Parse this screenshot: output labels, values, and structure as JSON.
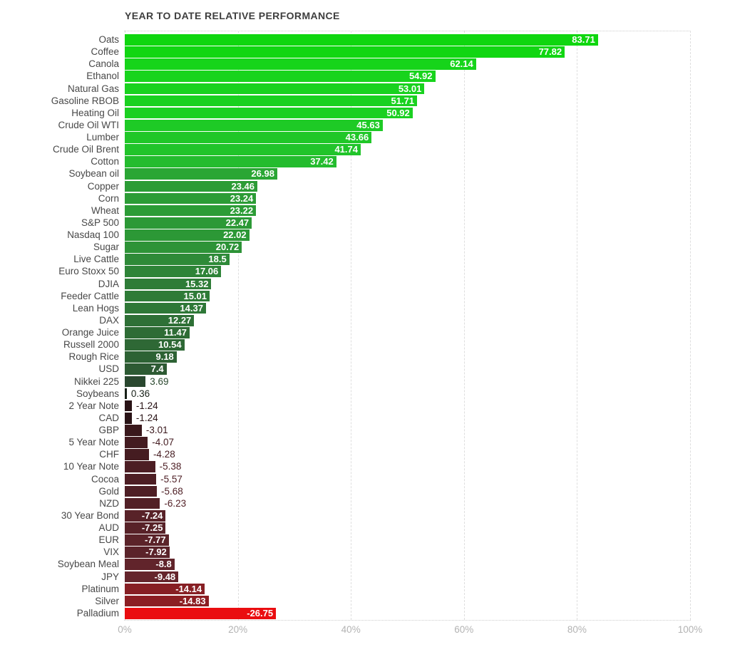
{
  "chart_data": {
    "type": "bar",
    "orientation": "horizontal",
    "title": "YEAR TO DATE RELATIVE PERFORMANCE",
    "x_axis": {
      "ticks": [
        "0%",
        "20%",
        "40%",
        "60%",
        "80%",
        "100%"
      ],
      "min": 0,
      "max": 100,
      "gridlines": "dashed vertical every 20%"
    },
    "value_label_rule": "values shown in white inside bar when bar is wide enough, otherwise outside in bar color; negative bars plot absolute magnitude from 0%",
    "series": [
      {
        "label": "Oats",
        "value": "83.71"
      },
      {
        "label": "Coffee",
        "value": "77.82"
      },
      {
        "label": "Canola",
        "value": "62.14"
      },
      {
        "label": "Ethanol",
        "value": "54.92"
      },
      {
        "label": "Natural Gas",
        "value": "53.01"
      },
      {
        "label": "Gasoline RBOB",
        "value": "51.71"
      },
      {
        "label": "Heating Oil",
        "value": "50.92"
      },
      {
        "label": "Crude Oil WTI",
        "value": "45.63"
      },
      {
        "label": "Lumber",
        "value": "43.66"
      },
      {
        "label": "Crude Oil Brent",
        "value": "41.74"
      },
      {
        "label": "Cotton",
        "value": "37.42"
      },
      {
        "label": "Soybean oil",
        "value": "26.98"
      },
      {
        "label": "Copper",
        "value": "23.46"
      },
      {
        "label": "Corn",
        "value": "23.24"
      },
      {
        "label": "Wheat",
        "value": "23.22"
      },
      {
        "label": "S&P 500",
        "value": "22.47"
      },
      {
        "label": "Nasdaq 100",
        "value": "22.02"
      },
      {
        "label": "Sugar",
        "value": "20.72"
      },
      {
        "label": "Live Cattle",
        "value": "18.5"
      },
      {
        "label": "Euro Stoxx 50",
        "value": "17.06"
      },
      {
        "label": "DJIA",
        "value": "15.32"
      },
      {
        "label": "Feeder Cattle",
        "value": "15.01"
      },
      {
        "label": "Lean Hogs",
        "value": "14.37"
      },
      {
        "label": "DAX",
        "value": "12.27"
      },
      {
        "label": "Orange Juice",
        "value": "11.47"
      },
      {
        "label": "Russell 2000",
        "value": "10.54"
      },
      {
        "label": "Rough Rice",
        "value": "9.18"
      },
      {
        "label": "USD",
        "value": "7.4"
      },
      {
        "label": "Nikkei 225",
        "value": "3.69"
      },
      {
        "label": "Soybeans",
        "value": "0.36"
      },
      {
        "label": "2 Year Note",
        "value": "-1.24"
      },
      {
        "label": "CAD",
        "value": "-1.24"
      },
      {
        "label": "GBP",
        "value": "-3.01"
      },
      {
        "label": "5 Year Note",
        "value": "-4.07"
      },
      {
        "label": "CHF",
        "value": "-4.28"
      },
      {
        "label": "10 Year Note",
        "value": "-5.38"
      },
      {
        "label": "Cocoa",
        "value": "-5.57"
      },
      {
        "label": "Gold",
        "value": "-5.68"
      },
      {
        "label": "NZD",
        "value": "-6.23"
      },
      {
        "label": "30 Year Bond",
        "value": "-7.24"
      },
      {
        "label": "AUD",
        "value": "-7.25"
      },
      {
        "label": "EUR",
        "value": "-7.77"
      },
      {
        "label": "VIX",
        "value": "-7.92"
      },
      {
        "label": "Soybean Meal",
        "value": "-8.8"
      },
      {
        "label": "JPY",
        "value": "-9.48"
      },
      {
        "label": "Platinum",
        "value": "-14.14"
      },
      {
        "label": "Silver",
        "value": "-14.83"
      },
      {
        "label": "Palladium",
        "value": "-26.75"
      }
    ],
    "color_scale": {
      "positive_max": 83.71,
      "negative_min": -26.75,
      "positive_stops": [
        [
          0.0,
          "#151b15"
        ],
        [
          0.03,
          "#263f2b"
        ],
        [
          0.05,
          "#2b4c31"
        ],
        [
          0.09,
          "#2d5b33"
        ],
        [
          0.13,
          "#2e6a35"
        ],
        [
          0.18,
          "#2e7b37"
        ],
        [
          0.22,
          "#2e8a38"
        ],
        [
          0.27,
          "#2c9a36"
        ],
        [
          0.33,
          "#2aa834"
        ],
        [
          0.45,
          "#24bd2e"
        ],
        [
          0.55,
          "#1ecb26"
        ],
        [
          0.66,
          "#18d41d"
        ],
        [
          1.0,
          "#0fd60f"
        ]
      ],
      "negative_stops": [
        [
          0.0,
          "#1c0e10"
        ],
        [
          0.046,
          "#291316"
        ],
        [
          0.113,
          "#3a181c"
        ],
        [
          0.16,
          "#451c21"
        ],
        [
          0.2,
          "#4c1e24"
        ],
        [
          0.233,
          "#522026"
        ],
        [
          0.27,
          "#582228"
        ],
        [
          0.3,
          "#5c232a"
        ],
        [
          0.33,
          "#61242b"
        ],
        [
          0.354,
          "#65252c"
        ],
        [
          0.53,
          "#871f24"
        ],
        [
          0.554,
          "#8c1e23"
        ],
        [
          1.0,
          "#ea0d10"
        ]
      ],
      "inside_value_color": "#ffffff",
      "category_label_color": "#484848",
      "axis_tick_color": "#b3b3b3",
      "title_color": "#3e3e3e",
      "grid_color": "#dedede",
      "background": "#ffffff"
    }
  }
}
